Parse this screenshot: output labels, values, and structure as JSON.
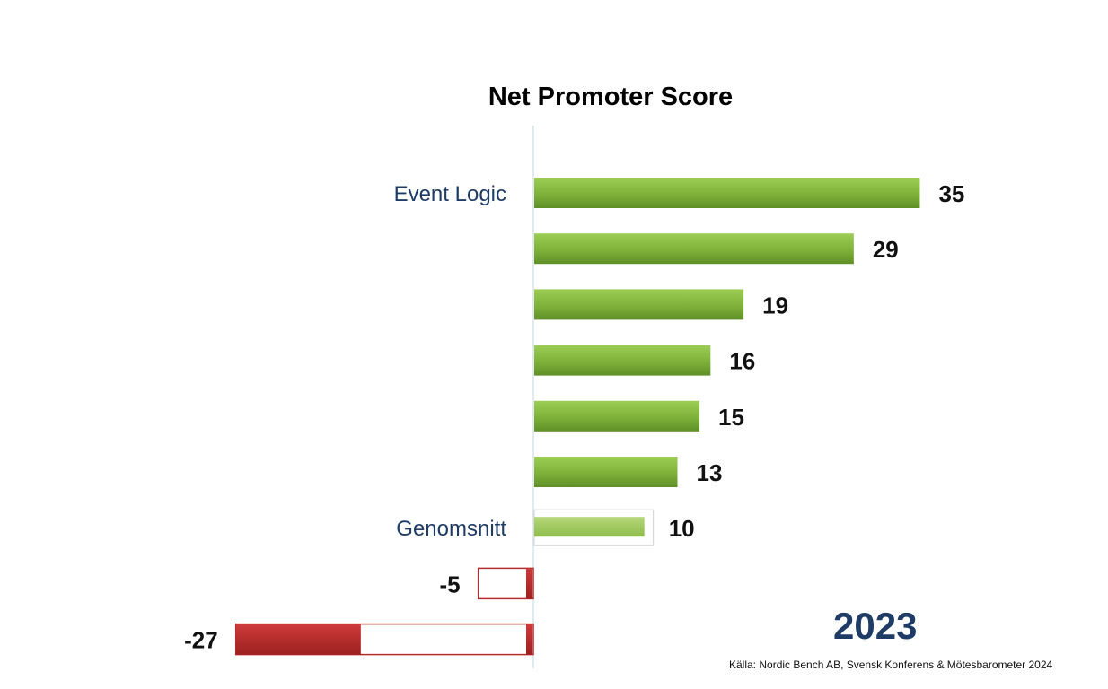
{
  "chart_data": {
    "type": "bar",
    "orientation": "horizontal",
    "title": "Net Promoter Score",
    "categories": [
      "Event Logic",
      "",
      "",
      "",
      "",
      "",
      "Genomsnitt",
      "",
      ""
    ],
    "values": [
      35,
      29,
      19,
      16,
      15,
      13,
      10,
      -5,
      -27
    ],
    "highlight": [
      "Event Logic",
      "Genomsnitt"
    ],
    "colors": {
      "positive": "#7fb13a",
      "average": "#9cc65b",
      "negative": "#b52a2a",
      "category_label": "#1f3c66"
    }
  },
  "year_label": "2023",
  "source_note": "Källa: Nordic Bench AB, Svensk Konferens & Mötesbarometer 2024"
}
